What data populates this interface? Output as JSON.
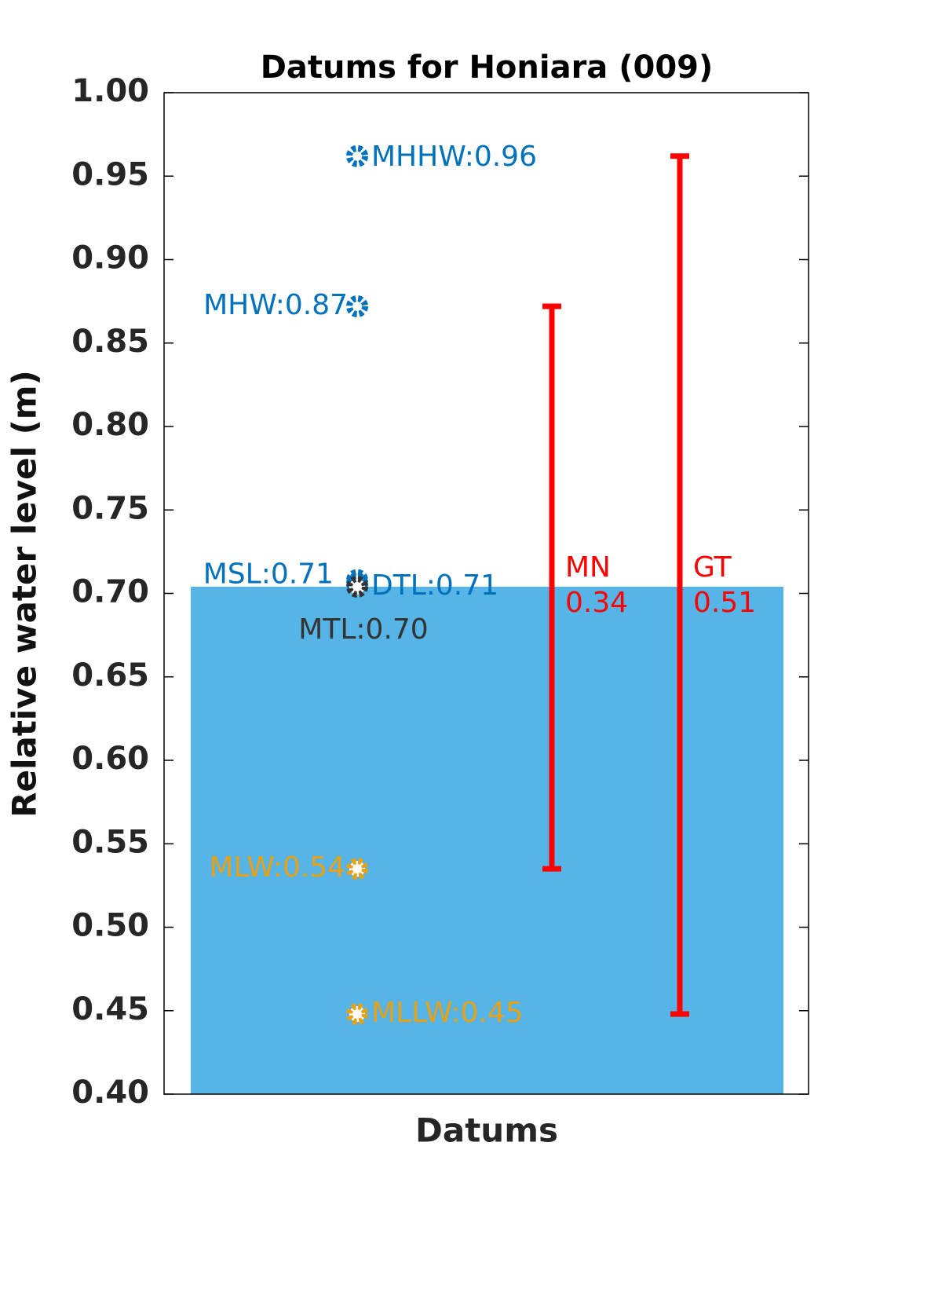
{
  "chart_data": {
    "type": "datums",
    "title": "Datums for Honiara (009)",
    "x_label": "Datums",
    "y_label": "Relative water level (m)",
    "ylim": [
      0.4,
      1.0
    ],
    "yticks": [
      {
        "value": 0.4,
        "label": "0.40"
      },
      {
        "value": 0.45,
        "label": "0.45"
      },
      {
        "value": 0.5,
        "label": "0.50"
      },
      {
        "value": 0.55,
        "label": "0.55"
      },
      {
        "value": 0.6,
        "label": "0.60"
      },
      {
        "value": 0.65,
        "label": "0.65"
      },
      {
        "value": 0.7,
        "label": "0.70"
      },
      {
        "value": 0.75,
        "label": "0.75"
      },
      {
        "value": 0.8,
        "label": "0.80"
      },
      {
        "value": 0.85,
        "label": "0.85"
      },
      {
        "value": 0.9,
        "label": "0.90"
      },
      {
        "value": 0.95,
        "label": "0.95"
      },
      {
        "value": 1.0,
        "label": "1.00"
      }
    ],
    "bar_value": 0.704,
    "bar_color": "#56b4e6",
    "points": {
      "values": [
        0.962,
        0.872,
        0.708,
        0.706,
        0.704,
        0.535,
        0.448
      ],
      "value_labels": [
        "MHHW:0.96",
        "MHW:0.87",
        "MSL:0.71",
        "DTL:0.71",
        "MTL:0.70",
        "MLW:0.54",
        "MLLW:0.45"
      ],
      "colors": [
        "#0072bd",
        "#0072bd",
        "#0072bd",
        "#0072bd",
        "#333333",
        "#e6a117",
        "#e6a117"
      ]
    },
    "ranges": {
      "names": [
        "MN",
        "GT"
      ],
      "values": [
        0.337,
        0.514
      ],
      "value_labels": [
        "0.34",
        "0.51"
      ],
      "lows": [
        0.535,
        0.448
      ],
      "color": "#ff0000"
    }
  }
}
